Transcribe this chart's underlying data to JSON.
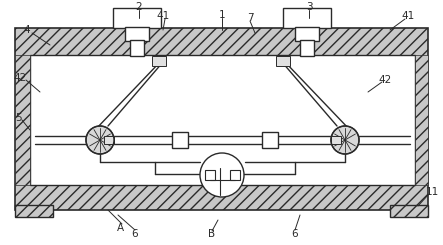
{
  "bg_color": "#ffffff",
  "line_color": "#2a2a2a",
  "hatch_fc": "#c8c8c8",
  "white": "#ffffff",
  "gray_light": "#e8e8e8",
  "gray_med": "#b0b0b0"
}
